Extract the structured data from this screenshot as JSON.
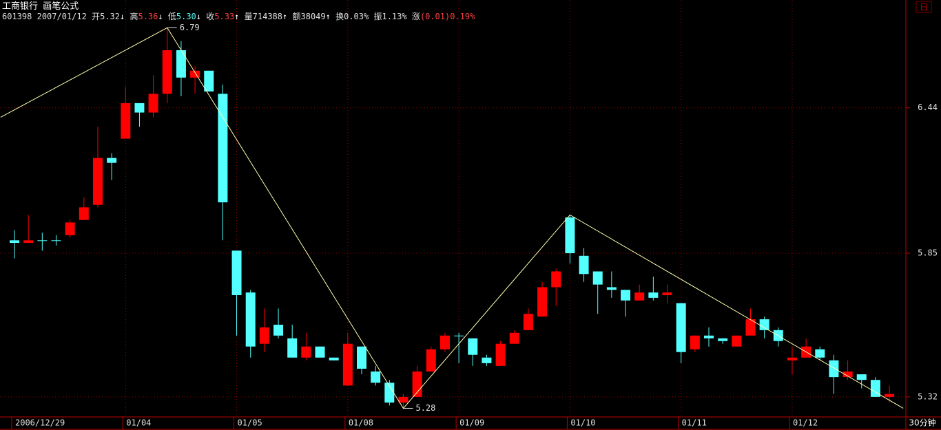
{
  "chart_data": {
    "type": "candlestick",
    "title": "工商银行",
    "subtitle": "画笔公式",
    "period": "30分钟",
    "corner": "日",
    "info": {
      "code": "601398",
      "date": "2007/01/12",
      "fields": [
        {
          "name": "开",
          "text": "5.32",
          "arrow": "↓",
          "color": "#e0e0e0"
        },
        {
          "name": "高",
          "text": "5.36",
          "arrow": "↓",
          "color": "#ff4040"
        },
        {
          "name": "低",
          "text": "5.30",
          "arrow": "↓",
          "color": "#54ffff"
        },
        {
          "name": "收",
          "text": "5.33",
          "arrow": "↑",
          "color": "#ff4040"
        },
        {
          "name": "量",
          "text": "714388",
          "arrow": "↑",
          "color": "#e0e0e0"
        },
        {
          "name": "额",
          "text": "38049",
          "arrow": "↑",
          "color": "#e0e0e0"
        },
        {
          "name": "换",
          "text": "0.03%",
          "color": "#e0e0e0"
        },
        {
          "name": "振",
          "text": "1.13%",
          "color": "#e0e0e0"
        },
        {
          "name": "涨",
          "text": "(0.01)0.19%",
          "color": "#ff4040"
        }
      ]
    },
    "days": [
      {
        "label": "2006/12/29",
        "start": 0
      },
      {
        "label": "01/04",
        "start": 8
      },
      {
        "label": "01/05",
        "start": 16
      },
      {
        "label": "01/08",
        "start": 24
      },
      {
        "label": "01/09",
        "start": 32
      },
      {
        "label": "01/10",
        "start": 40
      },
      {
        "label": "01/11",
        "start": 48
      },
      {
        "label": "01/12",
        "start": 56
      }
    ],
    "candles": {
      "open": [
        5.9,
        5.89,
        5.9,
        5.9,
        5.92,
        5.98,
        6.04,
        6.23,
        6.31,
        6.46,
        6.42,
        6.5,
        6.69,
        6.57,
        6.6,
        6.5,
        5.86,
        5.7,
        5.51,
        5.58,
        5.53,
        5.46,
        5.5,
        5.46,
        5.36,
        5.5,
        5.41,
        5.37,
        5.3,
        5.32,
        5.41,
        5.49,
        5.54,
        5.53,
        5.46,
        5.43,
        5.51,
        5.56,
        5.61,
        5.72,
        5.99,
        5.84,
        5.78,
        5.72,
        5.71,
        5.67,
        5.7,
        5.69,
        5.66,
        5.49,
        5.54,
        5.53,
        5.5,
        5.54,
        5.6,
        5.56,
        5.45,
        5.46,
        5.49,
        5.45,
        5.39,
        5.4,
        5.38,
        5.32
      ],
      "high": [
        5.94,
        6.0,
        5.93,
        5.92,
        5.98,
        6.07,
        6.36,
        6.25,
        6.53,
        6.46,
        6.58,
        6.79,
        6.73,
        6.62,
        6.6,
        6.54,
        5.86,
        5.71,
        5.64,
        5.64,
        5.58,
        5.55,
        5.5,
        5.46,
        5.55,
        5.5,
        5.43,
        5.38,
        5.33,
        5.43,
        5.5,
        5.55,
        5.55,
        5.53,
        5.47,
        5.52,
        5.56,
        5.64,
        5.74,
        5.79,
        6.0,
        5.87,
        5.78,
        5.78,
        5.71,
        5.73,
        5.76,
        5.73,
        5.66,
        5.54,
        5.57,
        5.53,
        5.54,
        5.64,
        5.61,
        5.57,
        5.5,
        5.53,
        5.5,
        5.47,
        5.45,
        5.4,
        5.39,
        5.36
      ],
      "low": [
        5.83,
        5.89,
        5.86,
        5.88,
        5.91,
        5.98,
        6.03,
        6.14,
        6.31,
        6.36,
        6.4,
        6.46,
        6.49,
        6.5,
        6.51,
        5.9,
        5.54,
        5.46,
        5.48,
        5.53,
        5.46,
        5.45,
        5.46,
        5.45,
        5.36,
        5.4,
        5.36,
        5.29,
        5.28,
        5.32,
        5.41,
        5.48,
        5.44,
        5.43,
        5.43,
        5.43,
        5.51,
        5.56,
        5.61,
        5.65,
        5.81,
        5.74,
        5.62,
        5.68,
        5.61,
        5.67,
        5.67,
        5.66,
        5.44,
        5.48,
        5.5,
        5.51,
        5.5,
        5.54,
        5.53,
        5.5,
        5.4,
        5.46,
        5.45,
        5.33,
        5.38,
        5.35,
        5.32,
        5.3
      ],
      "close": [
        5.89,
        5.9,
        5.9,
        5.9,
        5.97,
        6.03,
        6.23,
        6.21,
        6.46,
        6.42,
        6.5,
        6.69,
        6.57,
        6.6,
        6.51,
        6.05,
        5.69,
        5.5,
        5.57,
        5.54,
        5.46,
        5.5,
        5.46,
        5.45,
        5.51,
        5.42,
        5.37,
        5.3,
        5.32,
        5.41,
        5.49,
        5.54,
        5.54,
        5.47,
        5.44,
        5.51,
        5.55,
        5.62,
        5.72,
        5.78,
        5.85,
        5.77,
        5.73,
        5.71,
        5.67,
        5.7,
        5.68,
        5.7,
        5.48,
        5.54,
        5.53,
        5.52,
        5.54,
        5.6,
        5.56,
        5.52,
        5.46,
        5.5,
        5.46,
        5.39,
        5.41,
        5.38,
        5.32,
        5.33
      ]
    },
    "up_color": "#ff0000",
    "down_color": "#54ffff",
    "grid_color": "#a00000",
    "pen": {
      "color": "#ffffb0",
      "points": [
        {
          "index": -1,
          "value": 6.4,
          "labeled": false
        },
        {
          "index": 11,
          "value": 6.79,
          "labeled": true
        },
        {
          "index": 28,
          "value": 5.28,
          "labeled": true
        },
        {
          "index": 40,
          "value": 6.0,
          "labeled": false
        },
        {
          "index": 64,
          "value": 5.28,
          "labeled": false
        }
      ]
    },
    "ylim": [
      5.25,
      6.9
    ],
    "yticks": [
      6.44,
      5.85,
      5.32
    ],
    "log_scale": true,
    "grid": true
  }
}
